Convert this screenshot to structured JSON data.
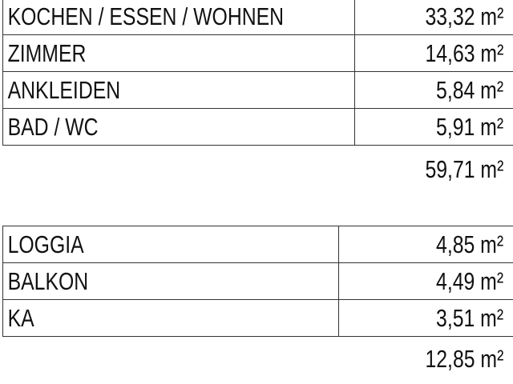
{
  "rooms": [
    {
      "name": "KOCHEN / ESSEN / WOHNEN",
      "area": "33,32 m²"
    },
    {
      "name": "ZIMMER",
      "area": "14,63 m²"
    },
    {
      "name": "ANKLEIDEN",
      "area": "5,84 m²"
    },
    {
      "name": "BAD / WC",
      "area": "5,91 m²"
    }
  ],
  "rooms_total": "59,71 m²",
  "outdoor": [
    {
      "name": "LOGGIA",
      "area": "4,85 m²"
    },
    {
      "name": "BALKON",
      "area": "4,49 m²"
    },
    {
      "name": "KA",
      "area": "3,51 m²"
    }
  ],
  "outdoor_total": "12,85 m²"
}
